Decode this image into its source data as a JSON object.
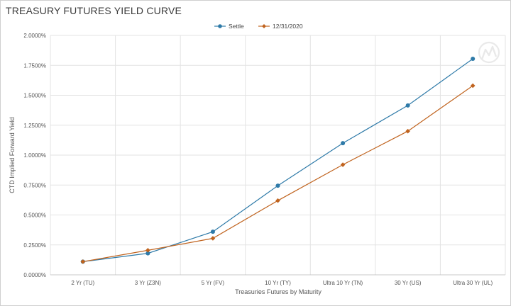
{
  "chart_data": {
    "type": "line",
    "title": "TREASURY FUTURES YIELD CURVE",
    "xlabel": "Treasuries Futures by Maturity",
    "ylabel": "CTD Implied Forward Yield",
    "categories": [
      "2 Yr (TU)",
      "3 Yr (Z3N)",
      "5 Yr (FV)",
      "10 Yr (TY)",
      "Ultra 10 Yr (TN)",
      "30 Yr (US)",
      "Ultra 30 Yr (UL)"
    ],
    "ylim": [
      0,
      2.0
    ],
    "yticks": [
      "0.0000%",
      "0.2500%",
      "0.5000%",
      "0.7500%",
      "1.0000%",
      "1.2500%",
      "1.5000%",
      "1.7500%",
      "2.0000%"
    ],
    "grid": true,
    "legend_position": "top-center",
    "series": [
      {
        "name": "Settle",
        "color": "#2e7aa8",
        "marker": "circle",
        "values": [
          0.11,
          0.18,
          0.36,
          0.745,
          1.1,
          1.415,
          1.805
        ]
      },
      {
        "name": "12/31/2020",
        "color": "#c0631e",
        "marker": "diamond",
        "values": [
          0.11,
          0.205,
          0.305,
          0.62,
          0.92,
          1.2,
          1.58
        ]
      }
    ]
  }
}
